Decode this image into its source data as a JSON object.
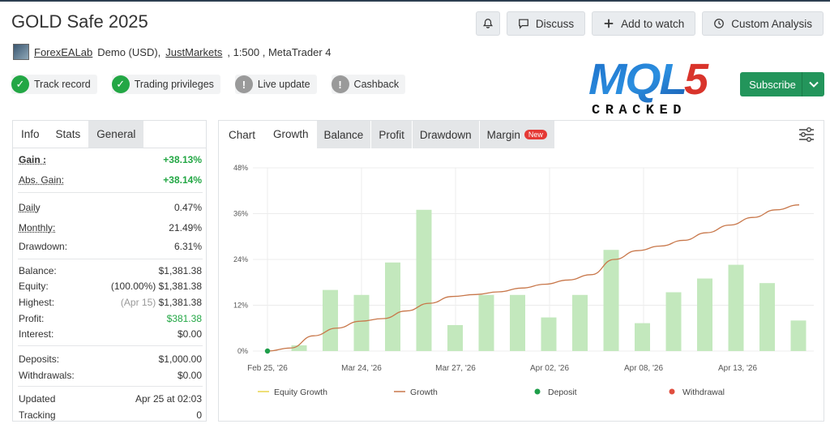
{
  "header": {
    "title": "GOLD Safe 2025",
    "buttons": {
      "discuss": "Discuss",
      "watch": "Add to watch",
      "analysis": "Custom Analysis"
    }
  },
  "meta": {
    "author": "ForexEALab",
    "account": "Demo (USD),",
    "broker": "JustMarkets",
    "leverage": ", 1:500 , MetaTrader 4"
  },
  "badges": [
    {
      "label": "Track record",
      "state": "ok"
    },
    {
      "label": "Trading privileges",
      "state": "ok"
    },
    {
      "label": "Live update",
      "state": "na"
    },
    {
      "label": "Cashback",
      "state": "na"
    }
  ],
  "logo": {
    "top": "MQL5",
    "bottom": "CRACKED"
  },
  "subscribe": {
    "label": "Subscribe"
  },
  "left": {
    "tabs": [
      "Info",
      "Stats",
      "General"
    ],
    "gain": {
      "k": "Gain :",
      "v": "+38.13%"
    },
    "abs_gain": {
      "k": "Abs. Gain:",
      "v": "+38.14%"
    },
    "daily": {
      "k": "Daily",
      "v": "0.47%"
    },
    "monthly": {
      "k": "Monthly:",
      "v": "21.49%"
    },
    "drawdown": {
      "k": "Drawdown:",
      "v": "6.31%"
    },
    "balance": {
      "k": "Balance:",
      "v": "$1,381.38"
    },
    "equity": {
      "k": "Equity:",
      "pre": "(100.00%)",
      "v": "$1,381.38"
    },
    "highest": {
      "k": "Highest:",
      "pre": "(Apr 15)",
      "v": "$1,381.38"
    },
    "profit": {
      "k": "Profit:",
      "v": "$381.38"
    },
    "interest": {
      "k": "Interest:",
      "v": "$0.00"
    },
    "deposits": {
      "k": "Deposits:",
      "v": "$1,000.00"
    },
    "withdrawals": {
      "k": "Withdrawals:",
      "v": "$0.00"
    },
    "updated": {
      "k": "Updated",
      "v": "Apr 25 at 02:03"
    },
    "tracking": {
      "k": "Tracking",
      "v": "0"
    }
  },
  "chart_tabs": {
    "chart": "Chart",
    "tabs": [
      "Growth",
      "Balance",
      "Profit",
      "Drawdown",
      "Margin"
    ],
    "new_badge": "New"
  },
  "chart_data": {
    "type": "bar",
    "ylim": [
      0,
      48
    ],
    "yticks": [
      "0%",
      "12%",
      "24%",
      "36%",
      "48%"
    ],
    "xticks": [
      "Feb 25, '26",
      "Mar 24, '26",
      "Mar 27, '26",
      "Apr 02, '26",
      "Apr 08, '26",
      "Apr 13, '26"
    ],
    "bars": [
      1.5,
      16,
      14.7,
      23.2,
      37,
      6.8,
      14.7,
      14.7,
      8.8,
      14.7,
      26.5,
      7.3,
      15.4,
      19,
      22.6,
      17.8,
      8
    ],
    "growth_line": [
      0,
      0.8,
      4,
      6,
      7.8,
      8.5,
      10.5,
      12.5,
      14.3,
      14.8,
      15.5,
      16.5,
      17.5,
      18.6,
      20,
      24,
      26.3,
      27.5,
      29,
      31,
      33,
      35,
      37,
      38.3
    ],
    "series": [
      {
        "name": "Equity Growth",
        "color": "#e8d44a"
      },
      {
        "name": "Growth",
        "color": "#c8774a"
      },
      {
        "name": "Deposit",
        "color": "#1e9e4a"
      },
      {
        "name": "Withdrawal",
        "color": "#e04f3f"
      }
    ],
    "bar_color": "#c3e8bd",
    "deposit_point": 0
  }
}
